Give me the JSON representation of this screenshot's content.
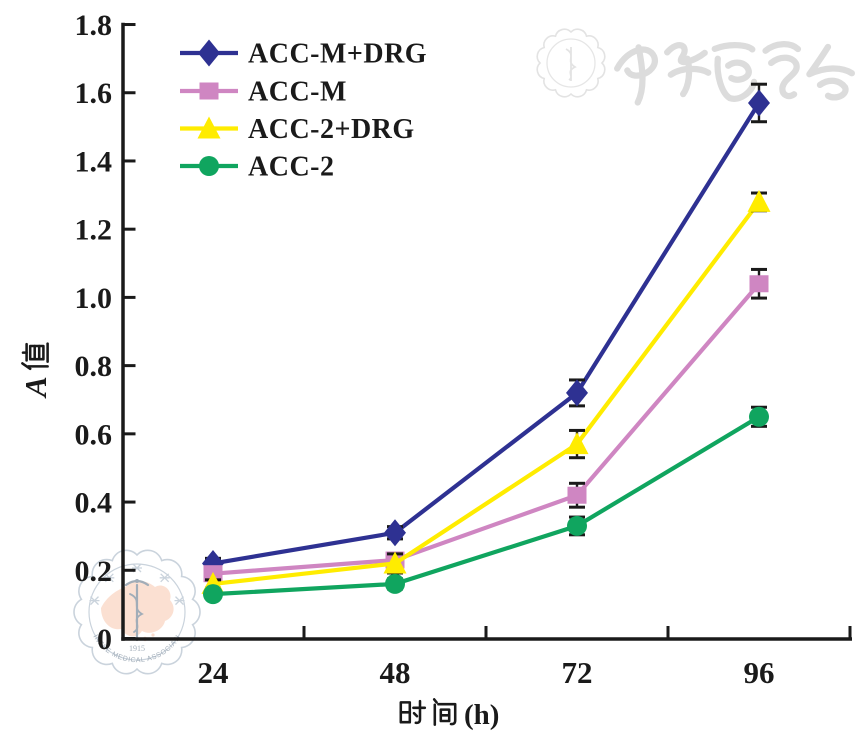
{
  "chart_data": {
    "type": "line",
    "title": "",
    "xlabel": "时间(h)",
    "xlabel_unit": "(h)",
    "ylabel": "A值",
    "ylabel_letter": "A",
    "x_categories": [
      "24",
      "48",
      "72",
      "96"
    ],
    "y_ticks": [
      "0",
      "0.2",
      "0.4",
      "0.6",
      "0.8",
      "1.0",
      "1.2",
      "1.4",
      "1.6",
      "1.8"
    ],
    "ylim": [
      0,
      1.8
    ],
    "grid": false,
    "legend_position": "top-left",
    "series": [
      {
        "name": "ACC-M+DRG",
        "marker": "diamond",
        "color": "#2e3192",
        "values": [
          0.22,
          0.31,
          0.72,
          1.57
        ],
        "errors": [
          0.015,
          0.018,
          0.038,
          0.055
        ]
      },
      {
        "name": "ACC-M",
        "marker": "square",
        "color": "#cf86c2",
        "values": [
          0.19,
          0.23,
          0.42,
          1.04
        ],
        "errors": [
          0.012,
          0.02,
          0.035,
          0.042
        ]
      },
      {
        "name": "ACC-2+DRG",
        "marker": "triangle",
        "color": "#ffec00",
        "values": [
          0.16,
          0.22,
          0.57,
          1.28
        ],
        "errors": [
          0.012,
          0.028,
          0.04,
          0.026
        ]
      },
      {
        "name": "ACC-2",
        "marker": "circle",
        "color": "#10a55f",
        "values": [
          0.13,
          0.16,
          0.33,
          0.65
        ],
        "errors": [
          0.012,
          0.015,
          0.026,
          0.028
        ]
      }
    ]
  },
  "watermarks": {
    "calligraphy_text": "中华医学会",
    "bottom_seal": {
      "top_arc_text": "中华医学会",
      "year": "1915",
      "bottom_arc_text": "CHINESE MEDICAL ASSOCIATION"
    }
  },
  "colors": {
    "axis": "#1a1a1a",
    "error_bar": "#1a1a1a",
    "text": "#1a1a1a",
    "watermark_gray": "#dcdcdc",
    "seal_ring_blue": "#a7b6c6",
    "seal_detail_blue": "#64778a",
    "map_salmon": "#f6c5ac"
  }
}
